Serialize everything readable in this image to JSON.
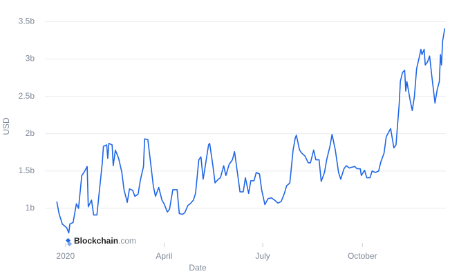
{
  "chart_data": {
    "type": "line",
    "y_label": "USD",
    "x_label": "Date",
    "watermark": "Blockchain",
    "watermark_suffix": ".com",
    "x": [
      -8,
      -6,
      -3,
      1,
      3,
      4,
      7,
      10,
      12,
      15,
      17,
      20,
      21,
      24,
      26,
      29,
      31,
      34,
      35,
      38,
      39,
      40,
      43,
      44,
      46,
      49,
      52,
      54,
      57,
      59,
      62,
      64,
      67,
      69,
      72,
      73,
      76,
      78,
      81,
      83,
      86,
      89,
      91,
      94,
      96,
      99,
      103,
      105,
      108,
      110,
      113,
      115,
      118,
      120,
      123,
      125,
      127,
      129,
      132,
      133,
      136,
      138,
      141,
      143,
      146,
      148,
      151,
      154,
      156,
      159,
      161,
      164,
      166,
      169,
      171,
      174,
      176,
      179,
      181,
      184,
      187,
      190,
      193,
      196,
      199,
      202,
      204,
      207,
      210,
      212,
      213,
      216,
      218,
      221,
      224,
      226,
      229,
      231,
      234,
      236,
      239,
      241,
      244,
      246,
      249,
      252,
      254,
      257,
      259,
      262,
      264,
      267,
      269,
      272,
      273,
      276,
      278,
      281,
      283,
      286,
      289,
      291,
      294,
      296,
      300,
      303,
      305,
      308,
      309,
      311,
      313,
      314,
      315,
      318,
      320,
      322,
      324,
      327,
      328,
      329,
      331,
      332,
      334,
      336,
      338,
      341,
      343,
      345,
      346,
      347,
      348,
      350
    ],
    "series": [
      {
        "name": "USD",
        "color": "#1f66e5",
        "values": [
          1.09,
          0.93,
          0.79,
          0.74,
          0.67,
          0.79,
          0.81,
          1.06,
          1.0,
          1.44,
          1.48,
          1.56,
          1.02,
          1.11,
          0.91,
          0.91,
          1.2,
          1.62,
          1.83,
          1.85,
          1.67,
          1.87,
          1.85,
          1.57,
          1.78,
          1.67,
          1.48,
          1.25,
          1.08,
          1.26,
          1.24,
          1.16,
          1.19,
          1.37,
          1.56,
          1.93,
          1.92,
          1.67,
          1.3,
          1.16,
          1.28,
          1.11,
          1.06,
          0.95,
          0.99,
          1.25,
          1.25,
          0.93,
          0.92,
          0.94,
          1.04,
          1.06,
          1.11,
          1.2,
          1.65,
          1.69,
          1.39,
          1.57,
          1.85,
          1.87,
          1.57,
          1.34,
          1.39,
          1.41,
          1.57,
          1.44,
          1.59,
          1.65,
          1.76,
          1.44,
          1.22,
          1.22,
          1.41,
          1.2,
          1.37,
          1.37,
          1.48,
          1.46,
          1.25,
          1.05,
          1.13,
          1.14,
          1.11,
          1.07,
          1.09,
          1.2,
          1.3,
          1.34,
          1.78,
          1.94,
          1.98,
          1.78,
          1.74,
          1.7,
          1.61,
          1.61,
          1.78,
          1.65,
          1.65,
          1.36,
          1.48,
          1.65,
          1.83,
          1.99,
          1.78,
          1.48,
          1.39,
          1.53,
          1.57,
          1.54,
          1.55,
          1.56,
          1.53,
          1.53,
          1.44,
          1.51,
          1.41,
          1.41,
          1.5,
          1.48,
          1.5,
          1.62,
          1.74,
          1.96,
          2.07,
          1.81,
          1.85,
          2.41,
          2.7,
          2.82,
          2.85,
          2.57,
          2.7,
          2.45,
          2.31,
          2.5,
          2.87,
          3.06,
          3.13,
          3.06,
          3.13,
          2.92,
          2.96,
          3.04,
          2.78,
          2.41,
          2.59,
          2.7,
          3.06,
          2.92,
          3.24,
          3.41
        ]
      }
    ],
    "xlim": [
      -19,
      351
    ],
    "xticks": [
      {
        "value": 0,
        "label": "2020"
      },
      {
        "value": 91,
        "label": "April"
      },
      {
        "value": 182,
        "label": "July"
      },
      {
        "value": 274,
        "label": "October"
      }
    ],
    "ylim": [
      0.62,
      3.56
    ],
    "yticks": [
      {
        "value": 1,
        "label": "1b"
      },
      {
        "value": 1.5,
        "label": "1.5b"
      },
      {
        "value": 2,
        "label": "2b"
      },
      {
        "value": 2.5,
        "label": "2.5b"
      },
      {
        "value": 3,
        "label": "3b"
      },
      {
        "value": 3.5,
        "label": "3.5b"
      }
    ],
    "grid": true
  }
}
